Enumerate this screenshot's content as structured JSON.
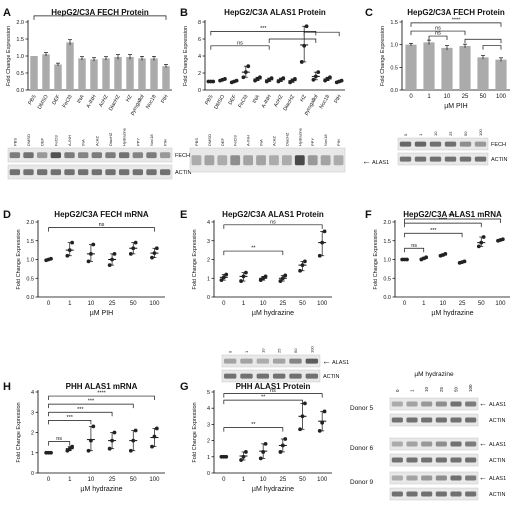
{
  "figure": {
    "background": "#ffffff",
    "bar_color": "#ababab",
    "point_color": "#222222",
    "accent": "#000000"
  },
  "chart_data": [
    {
      "type": "bar",
      "panel": "A",
      "title": "HepG2/C3A FECH Protein",
      "ylabel": "Fold Change Expression",
      "yticks": [
        "0.0",
        "0.5",
        "1.0",
        "1.5",
        "2.0"
      ],
      "ylim": [
        0,
        2.0
      ],
      "categories": [
        "PBS",
        "DMSO",
        "DEF",
        "FeCl3",
        "INA",
        "A-INH",
        "AcHZ",
        "DiacHZ",
        "HZ",
        "pyrogallol",
        "Noc18",
        "PIH"
      ],
      "values": [
        1.0,
        1.05,
        0.75,
        1.4,
        0.93,
        0.9,
        0.93,
        0.97,
        0.97,
        0.93,
        0.93,
        0.7
      ],
      "errors": [
        0,
        0.05,
        0.04,
        0.08,
        0.05,
        0.05,
        0.05,
        0.07,
        0.07,
        0.06,
        0.06,
        0.05
      ],
      "significance": [
        {
          "from": 0,
          "to": 11,
          "label": "*"
        }
      ],
      "blot": {
        "lanes": [
          "PBS",
          "DMSO",
          "DEF",
          "FeCl3",
          "A-INH",
          "INA",
          "AcHZ",
          "DiacHZ",
          "Hydrazine",
          "PPY",
          "Noc18",
          "PIH"
        ],
        "bands": [
          "FECH",
          "ACTIN"
        ]
      }
    },
    {
      "type": "scatter",
      "panel": "B",
      "title": "HepG2/C3A ALAS1 Protein",
      "ylabel": "Fold Change Expression",
      "yticks": [
        "0",
        "2",
        "4",
        "6",
        "8"
      ],
      "ylim": [
        0,
        8
      ],
      "categories": [
        "PBS",
        "DMSO",
        "DEF",
        "FeCl3",
        "INA",
        "A-INH",
        "AcHZ",
        "DiacHZ",
        "HZ",
        "pyrogallol",
        "Noc18",
        "PIH"
      ],
      "means": [
        1.0,
        1.2,
        1.0,
        2.1,
        1.3,
        1.2,
        1.2,
        1.1,
        5.3,
        1.6,
        1.3,
        1.0
      ],
      "points": [
        [
          1,
          1,
          1
        ],
        [
          1.1,
          1.2,
          1.3
        ],
        [
          0.9,
          1.0,
          1.1
        ],
        [
          1.5,
          2.1,
          2.8
        ],
        [
          1.1,
          1.3,
          1.5
        ],
        [
          1,
          1.2,
          1.4
        ],
        [
          1,
          1.2,
          1.4
        ],
        [
          0.9,
          1.1,
          1.3
        ],
        [
          3.3,
          5.2,
          7.5
        ],
        [
          1.2,
          1.6,
          2.1
        ],
        [
          1.1,
          1.3,
          1.5
        ],
        [
          0.9,
          1.0,
          1.1
        ]
      ],
      "significance": [
        {
          "label": "ns"
        },
        {
          "label": "***"
        }
      ],
      "blot": {
        "lanes": [
          "PBS",
          "DMSO",
          "DEF",
          "FeCl3",
          "A-INH",
          "INA",
          "AcHZ",
          "DiacHZ",
          "Hydrazine",
          "PPY",
          "Noc18",
          "PIH"
        ],
        "bands": [
          "ALAS1"
        ]
      }
    },
    {
      "type": "bar",
      "panel": "C",
      "title": "HepG2/C3A FECH Protein",
      "xlabel": "µM PIH",
      "ylabel": "Fold Change Expression",
      "yticks": [
        "0.0",
        "0.5",
        "1.0",
        "1.5"
      ],
      "ylim": [
        0,
        1.5
      ],
      "categories": [
        "0",
        "1",
        "10",
        "25",
        "50",
        "100"
      ],
      "values": [
        1.0,
        1.05,
        0.93,
        0.97,
        0.72,
        0.67
      ],
      "errors": [
        0.03,
        0.05,
        0.05,
        0.04,
        0.04,
        0.04
      ],
      "significance": [
        {
          "label": "****"
        },
        {
          "label": "ns"
        },
        {
          "label": "ns"
        }
      ],
      "blot": {
        "lanes": [
          "0",
          "1",
          "10",
          "25",
          "50",
          "100"
        ],
        "bands": [
          "FECH",
          "ACTIN"
        ]
      }
    },
    {
      "type": "scatter",
      "panel": "D",
      "title": "HepG2/C3A FECH mRNA",
      "xlabel": "µM PIH",
      "ylabel": "Fold Change Expression",
      "yticks": [
        "0.0",
        "0.5",
        "1.0",
        "1.5",
        "2.0"
      ],
      "ylim": [
        0,
        2.0
      ],
      "categories": [
        "0",
        "1",
        "10",
        "25",
        "50",
        "100"
      ],
      "means": [
        1.0,
        1.25,
        1.15,
        1.0,
        1.3,
        1.17
      ],
      "points": [
        [
          0.98,
          1.0,
          1.02
        ],
        [
          1.1,
          1.25,
          1.45
        ],
        [
          0.95,
          1.15,
          1.4
        ],
        [
          0.85,
          1.0,
          1.15
        ],
        [
          1.15,
          1.3,
          1.45
        ],
        [
          1.05,
          1.17,
          1.3
        ]
      ],
      "significance": [
        {
          "label": "ns"
        }
      ]
    },
    {
      "type": "scatter",
      "panel": "E",
      "title": "HepG2/C3A ALAS1 Protein",
      "xlabel": "µM hydrazine",
      "ylabel": "Fold Change Expression",
      "yticks": [
        "0",
        "1",
        "2",
        "3",
        "4"
      ],
      "ylim": [
        0,
        4
      ],
      "categories": [
        "0",
        "1",
        "10",
        "25",
        "50",
        "100"
      ],
      "means": [
        1.05,
        1.1,
        1.0,
        1.0,
        1.7,
        2.9
      ],
      "points": [
        [
          0.9,
          1.05,
          1.2
        ],
        [
          0.85,
          1.1,
          1.3
        ],
        [
          0.9,
          1.0,
          1.1
        ],
        [
          0.85,
          1.0,
          1.15
        ],
        [
          1.4,
          1.7,
          1.9
        ],
        [
          2.2,
          2.9,
          3.5
        ]
      ],
      "significance": [
        {
          "label": "ns"
        },
        {
          "label": "**"
        }
      ],
      "blot": {
        "lanes": [
          "0",
          "1",
          "10",
          "25",
          "50",
          "100"
        ],
        "bands": [
          "ALAS1",
          "ACTIN"
        ]
      }
    },
    {
      "type": "scatter",
      "panel": "F",
      "title": "HepG2/C3A ALAS1 mRNA",
      "xlabel": "µM hydrazine",
      "ylabel": "Fold Change Expression",
      "yticks": [
        "0.0",
        "0.5",
        "1.0",
        "1.5",
        "2.0"
      ],
      "ylim": [
        0,
        2.0
      ],
      "categories": [
        "0",
        "1",
        "10",
        "25",
        "50",
        "100"
      ],
      "means": [
        1.0,
        1.03,
        1.12,
        0.93,
        1.45,
        1.52
      ],
      "points": [
        [
          1,
          1,
          1
        ],
        [
          1.0,
          1.03,
          1.06
        ],
        [
          1.1,
          1.12,
          1.15
        ],
        [
          0.91,
          0.93,
          0.95
        ],
        [
          1.35,
          1.45,
          1.6
        ],
        [
          1.5,
          1.52,
          1.54
        ]
      ],
      "significance": [
        {
          "label": "ns"
        },
        {
          "label": "****"
        },
        {
          "label": "***"
        },
        {
          "label": "****"
        }
      ]
    },
    {
      "type": "scatter",
      "panel": "H",
      "title": "PHH ALAS1 mRNA",
      "xlabel": "µM hydrazine",
      "ylabel": "Fold Change Expression",
      "yticks": [
        "0",
        "1",
        "2",
        "3",
        "4"
      ],
      "ylim": [
        0,
        4
      ],
      "categories": [
        "0",
        "1",
        "10",
        "25",
        "50",
        "100"
      ],
      "means": [
        1.0,
        1.2,
        1.65,
        1.6,
        1.6,
        1.75
      ],
      "points": [
        [
          1,
          1,
          1
        ],
        [
          1.1,
          1.2,
          1.3
        ],
        [
          1.1,
          1.6,
          2.3
        ],
        [
          1.2,
          1.6,
          2.0
        ],
        [
          1.1,
          1.6,
          2.1
        ],
        [
          1.3,
          1.8,
          2.2
        ]
      ],
      "significance": [
        {
          "label": "ns"
        },
        {
          "label": "***"
        },
        {
          "label": "***"
        },
        {
          "label": "***"
        },
        {
          "label": "****"
        }
      ]
    },
    {
      "type": "scatter",
      "panel": "G",
      "title": "PHH ALAS1 Protein",
      "xlabel": "µM hydrazine",
      "ylabel": "Fold Change Expression",
      "yticks": [
        "0",
        "1",
        "2",
        "3",
        "4",
        "5"
      ],
      "ylim": [
        0,
        5
      ],
      "categories": [
        "0",
        "1",
        "10",
        "25",
        "50",
        "100"
      ],
      "means": [
        1.0,
        1.05,
        1.35,
        1.7,
        3.5,
        3.2
      ],
      "points": [
        [
          1,
          1,
          1
        ],
        [
          0.8,
          1.0,
          1.3
        ],
        [
          0.9,
          1.3,
          1.8
        ],
        [
          1.3,
          1.7,
          2.1
        ],
        [
          2.7,
          3.5,
          4.3
        ],
        [
          2.6,
          3.1,
          3.8
        ]
      ],
      "significance": [
        {
          "label": "ns"
        },
        {
          "label": "**"
        },
        {
          "label": "**"
        }
      ],
      "blot": {
        "title": "µM hydrazine",
        "lanes": [
          "0",
          "1",
          "10",
          "25",
          "50",
          "100"
        ],
        "donors": [
          "Donor 5",
          "Donor 6",
          "Donor 9"
        ],
        "bands": [
          "ALAS1",
          "ACTIN"
        ]
      }
    }
  ]
}
